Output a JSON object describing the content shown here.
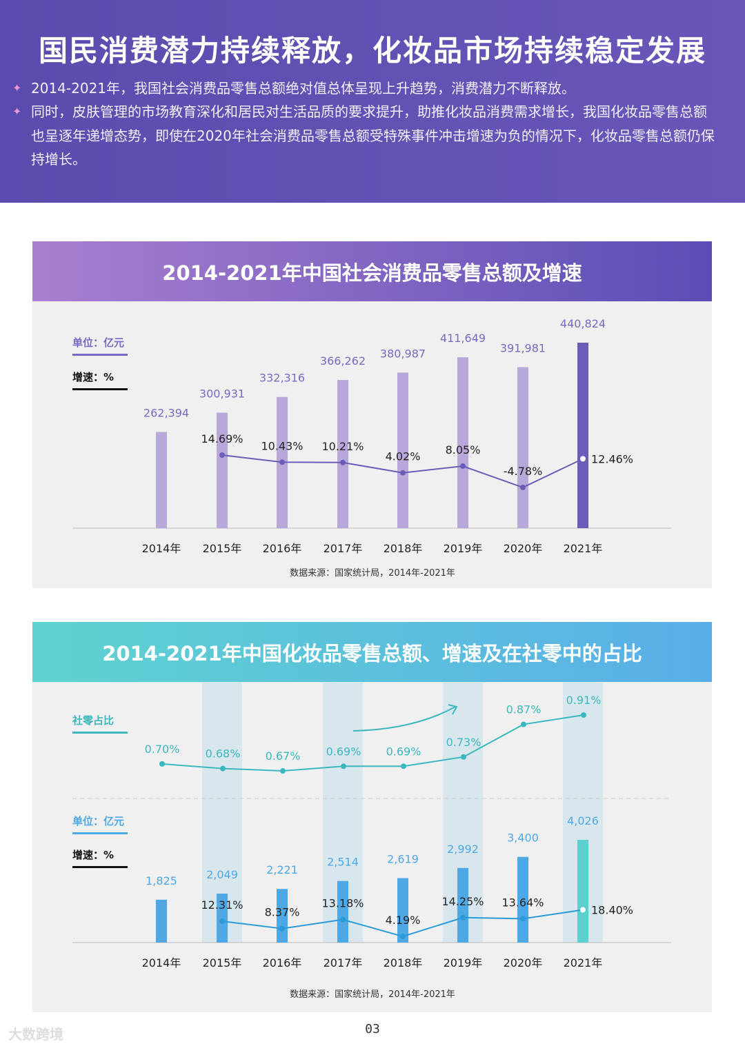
{
  "header": {
    "title": "国民消费潜力持续释放，化妆品市场持续稳定发展",
    "bullets": [
      "2014-2021年，我国社会消费品零售总额绝对值总体呈现上升趋势，消费潜力不断释放。",
      "同时，皮肤管理的市场教育深化和居民对生活品质的要求提升，助推化妆品消费需求增长，我国化妆品零售总额也呈逐年递增态势，即使在2020年社会消费品零售总额受特殊事件冲击增速为负的情况下，化妆品零售总额仍保持增长。"
    ],
    "bullet_icon": "sparkle-icon"
  },
  "chart_data": [
    {
      "type": "bar",
      "title": "2014-2021年中国社会消费品零售总额及增速",
      "unit_label": "单位：亿元",
      "growth_label": "增速：%",
      "categories": [
        "2014年",
        "2015年",
        "2016年",
        "2017年",
        "2018年",
        "2019年",
        "2020年",
        "2021年"
      ],
      "values": [
        262394,
        300931,
        332316,
        366262,
        380987,
        411649,
        391981,
        440824
      ],
      "value_labels": [
        "262,394",
        "300,931",
        "332,316",
        "366,262",
        "380,987",
        "411,649",
        "391,981",
        "440,824"
      ],
      "growth": [
        null,
        14.69,
        10.43,
        10.21,
        4.02,
        8.05,
        -4.78,
        12.46
      ],
      "growth_labels": [
        "",
        "14.69%",
        "10.43%",
        "10.21%",
        "4.02%",
        "8.05%",
        "-4.78%",
        "12.46%"
      ],
      "ylim": [
        70000,
        440824
      ],
      "growth_ylim": [
        -10,
        20
      ],
      "colors": {
        "bar": "#b8a8da",
        "bar_highlight": "#6b5cb8",
        "line": "#6b5cb8",
        "header_from": "#a97fd0",
        "header_to": "#5b4db5"
      },
      "source": "数据来源：国家统计局，2014年-2021年"
    },
    {
      "type": "bar",
      "title": "2014-2021年中国化妆品零售总额、增速及在社零中的占比",
      "share_label": "社零占比",
      "unit_label": "单位：亿元",
      "growth_label": "增速：%",
      "categories": [
        "2014年",
        "2015年",
        "2016年",
        "2017年",
        "2018年",
        "2019年",
        "2020年",
        "2021年"
      ],
      "values": [
        1825,
        2049,
        2221,
        2514,
        2619,
        2992,
        3400,
        4026
      ],
      "value_labels": [
        "1,825",
        "2,049",
        "2,221",
        "2,514",
        "2,619",
        "2,992",
        "3,400",
        "4,026"
      ],
      "growth": [
        null,
        12.31,
        8.37,
        13.18,
        4.19,
        14.25,
        13.64,
        18.4
      ],
      "growth_labels": [
        "",
        "12.31%",
        "8.37%",
        "13.18%",
        "4.19%",
        "14.25%",
        "13.64%",
        "18.40%"
      ],
      "share": [
        0.7,
        0.68,
        0.67,
        0.69,
        0.69,
        0.73,
        0.87,
        0.91
      ],
      "share_labels": [
        "0.70%",
        "0.68%",
        "0.67%",
        "0.69%",
        "0.69%",
        "0.73%",
        "0.87%",
        "0.91%"
      ],
      "ylim": [
        250,
        4026
      ],
      "colors": {
        "bar": "#4ea8e6",
        "bar_highlight": "#5ccfcf",
        "line": "#2a9bd8",
        "share_line": "#3bb8bd",
        "header_from": "#5ed3cf",
        "header_to": "#5aaee8",
        "band": "#d8e6ee"
      },
      "source": "数据来源：国家统计局，2014年-2021年"
    }
  ],
  "footer": {
    "page": "03",
    "watermark": "大数跨境"
  }
}
